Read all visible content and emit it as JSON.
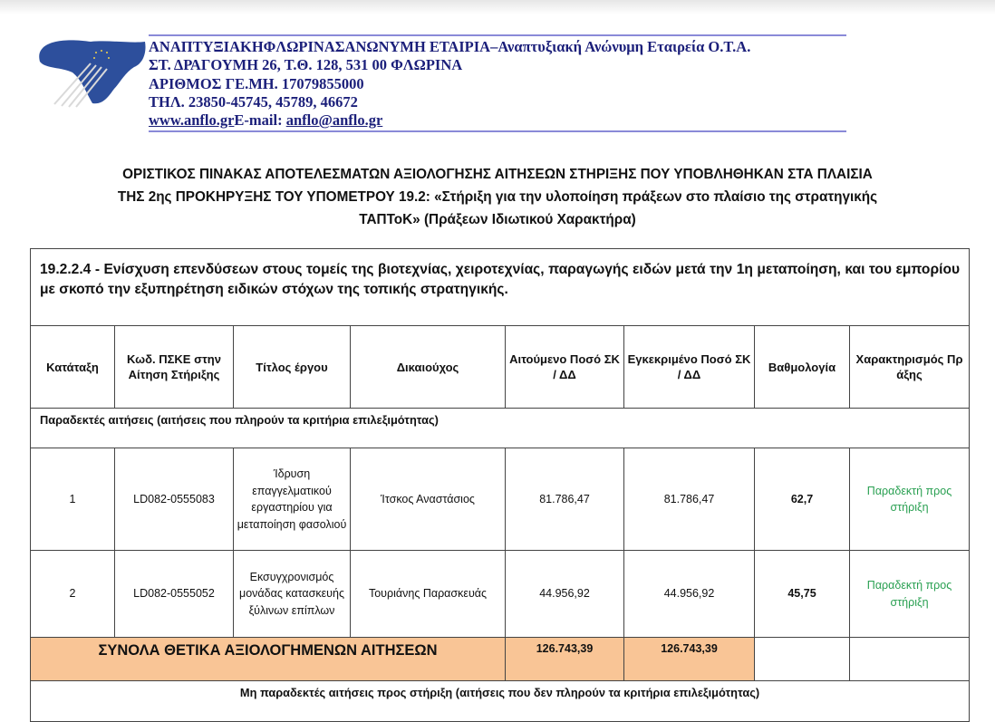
{
  "letterhead": {
    "line1": "ΑΝΑΠΤΥΞΙΑΚΗΦΛΩΡΙΝΑΣΑΝΩΝΥΜΗ ΕΤΑΙΡΙΑ–Αναπτυξιακή Ανώνυμη Εταιρεία Ο.Τ.Α.",
    "line2": "ΣΤ. ΔΡΑΓΟΥΜΗ 26, Τ.Θ. 128, 531 00 ΦΛΩΡΙΝΑ",
    "line3": "ΑΡΙΘΜΟΣ ΓΕ.ΜΗ. 17079855000",
    "line4": "ΤΗΛ. 23850-45745, 45789, 46672",
    "website": "www.anflo.gr",
    "email_label": "E-mail: ",
    "email": "anflo@anflo.gr",
    "brand_color": "#1b1f7a"
  },
  "title": {
    "line1": "ΟΡΙΣΤΙΚΟΣ ΠΙΝΑΚΑΣ  ΑΠΟΤΕΛΕΣΜΑΤΩΝ ΑΞΙΟΛΟΓΗΣΗΣ ΑΙΤΗΣΕΩΝ ΣΤΗΡΙΞΗΣ ΠΟΥ ΥΠΟΒΛΗΘΗΚΑΝ ΣΤΑ ΠΛΑΙΣΙΑ",
    "line2": "ΤΗΣ 2ης ΠΡΟΚΗΡΥΞΗΣ ΤΟΥ ΥΠΟΜΕΤΡΟΥ 19.2: «Στήριξη για την υλοποίηση πράξεων στο πλαίσιο της στρατηγικής",
    "line3": "ΤΑΠΤοΚ»  (Πράξεων Ιδιωτικού Χαρακτήρα)"
  },
  "table": {
    "measure": "19.2.2.4 - Ενίσχυση επενδύσεων στους τομείς της βιοτεχνίας, χειροτεχνίας, παραγωγής ειδών μετά την 1η μεταποίηση, και του εμπορίου με σκοπό την εξυπηρέτηση ειδικών στόχων της τοπικής στρατηγικής.",
    "headers": [
      "Κατάταξη",
      "Κωδ. ΠΣΚΕ στην Αίτηση Στήριξης",
      "Τίτλος έργου",
      "Δικαιούχος",
      "Αιτούμενο Ποσό ΣΚ / ΔΔ",
      "Εγκεκριμένο Ποσό ΣΚ / ΔΔ",
      "Βαθμολογία",
      "Χαρακτηρισμός Πράξης"
    ],
    "accepted_section": "Παραδεκτές αιτήσεις (αιτήσεις που πληρούν τα κριτήρια επιλεξιμότητας)",
    "rows": [
      {
        "rank": "1",
        "code": "LD082-0555083",
        "title": "Ίδρυση επαγγελματικού εργαστηρίου για μεταποίηση φασολιού",
        "beneficiary": "Ίτσκος Αναστάσιος",
        "requested": "81.786,47",
        "approved": "81.786,47",
        "score": "62,7",
        "status": "Παραδεκτή προς στήριξη"
      },
      {
        "rank": "2",
        "code": "LD082-0555052",
        "title": "Εκσυγχρονισμός μονάδας κατασκευής ξύλινων επίπλων",
        "beneficiary": "Τουριάνης Παρασκευάς",
        "requested": "44.956,92",
        "approved": "44.956,92",
        "score": "45,75",
        "status": "Παραδεκτή προς στήριξη"
      }
    ],
    "totals": {
      "label": "ΣΥΝΟΛΑ ΘΕΤΙΚΑ ΑΞΙΟΛΟΓΗΜΕΝΩΝ ΑΙΤΗΣΕΩΝ",
      "requested": "126.743,39",
      "approved": "126.743,39"
    },
    "rejected_section": "Μη παραδεκτές αιτήσεις προς στήριξη (αιτήσεις που δεν πληρούν τα κριτήρια επιλεξιμότητας)",
    "status_color": "#2aa052",
    "totals_color": "#f9c596"
  }
}
